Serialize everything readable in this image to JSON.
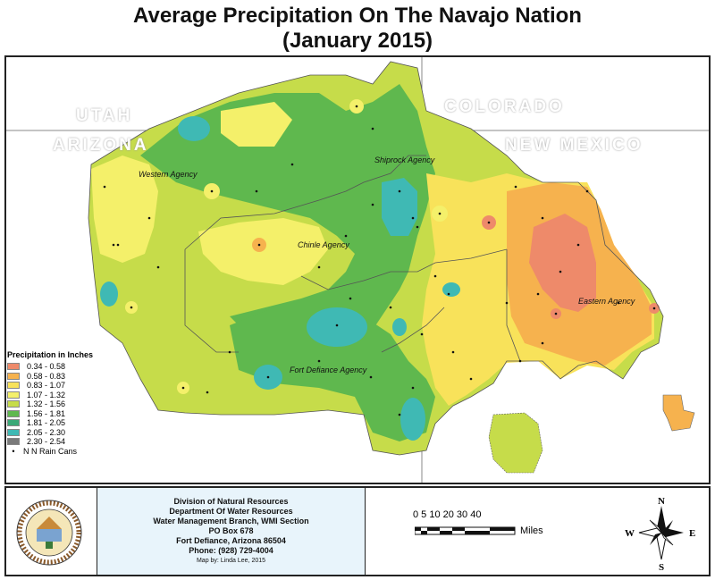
{
  "title": {
    "line1": "Average Precipitation On The Navajo Nation",
    "line2": "(January 2015)"
  },
  "state_labels": {
    "utah": "UTAH",
    "colorado": "COLORADO",
    "arizona": "ARIZONA",
    "new_mexico": "NEW MEXICO"
  },
  "agencies": {
    "western": "Western Agency",
    "shiprock": "Shiprock Agency",
    "chinle": "Chinle Agency",
    "eastern": "Eastern Agency",
    "fort_defiance": "Fort Defiance Agency"
  },
  "legend": {
    "title": "Precipitation in Inches",
    "items": [
      {
        "label": "0.34 - 0.58",
        "color": "#ee8a6a"
      },
      {
        "label": "0.58 - 0.83",
        "color": "#f6b24e"
      },
      {
        "label": "0.83 - 1.07",
        "color": "#f8e25a"
      },
      {
        "label": "1.07 - 1.32",
        "color": "#f4f06a"
      },
      {
        "label": "1.32 - 1.56",
        "color": "#c6dc4a"
      },
      {
        "label": "1.56 - 1.81",
        "color": "#5fb84e"
      },
      {
        "label": "1.81 - 2.05",
        "color": "#3aa877"
      },
      {
        "label": "2.05 - 2.30",
        "color": "#3fb9b4"
      },
      {
        "label": "2.30 - 2.54",
        "color": "#7a7a7a"
      }
    ],
    "rain_cans": "N N Rain Cans"
  },
  "info": {
    "line1": "Division of Natural Resources",
    "line2": "Department Of Water Resources",
    "line3": "Water Management Branch, WMI Section",
    "line4": "PO Box 678",
    "line5": "Fort Defiance, Arizona 86504",
    "line6": "Phone: (928) 729-4004",
    "credit": "Map by: Linda Lee, 2015"
  },
  "scale": {
    "ticks": "0 5 10   20   30   40",
    "unit": "Miles"
  },
  "compass": {
    "n": "N",
    "s": "S",
    "e": "E",
    "w": "W"
  }
}
